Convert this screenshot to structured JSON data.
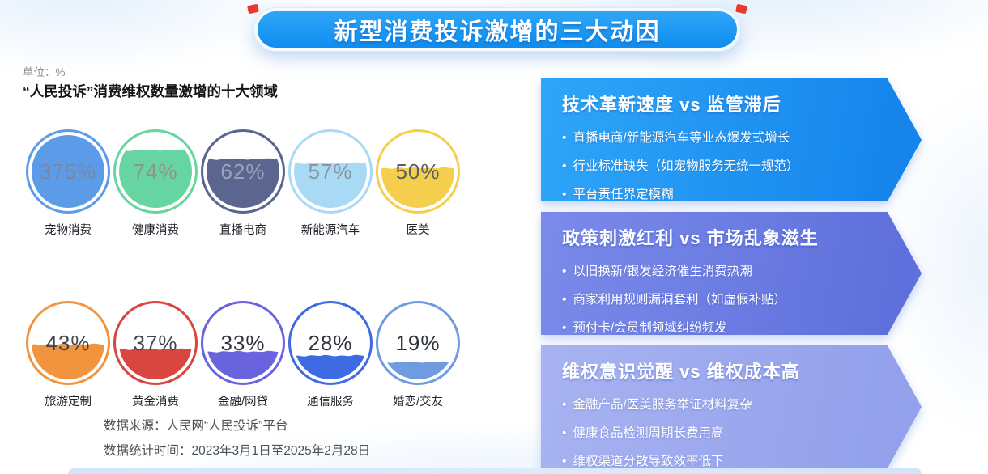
{
  "header": {
    "title": "新型消费投诉激增的三大动因",
    "banner_color": "#1E96F2",
    "accent_red": "#E8392E"
  },
  "left": {
    "unit_label": "单位：%",
    "section_title": "“人民投诉”消费维权数量激增的十大领域",
    "source_line1": "数据来源：人民网“人民投诉”平台",
    "source_line2": "数据统计时间：2023年3月1日至2025年2月28日"
  },
  "chart_data": {
    "type": "liquid-gauge-circles",
    "title": "“人民投诉”消费维权数量激增的十大领域",
    "unit": "%",
    "categories": [
      "宠物消费",
      "健康消费",
      "直播电商",
      "新能源汽车",
      "医美",
      "旅游定制",
      "黄金消费",
      "金融/网贷",
      "通信服务",
      "婚恋/交友"
    ],
    "values": [
      375,
      74,
      62,
      57,
      50,
      43,
      37,
      33,
      28,
      19
    ],
    "items": [
      {
        "label": "宠物消费",
        "value": 375,
        "display": "375%",
        "color": "#5B9BE8",
        "fill_pct": 100,
        "num_color": "#7B87A0"
      },
      {
        "label": "健康消费",
        "value": 74,
        "display": "74%",
        "color": "#67D5A1",
        "fill_pct": 74,
        "num_color": "#8A9590"
      },
      {
        "label": "直播电商",
        "value": 62,
        "display": "62%",
        "color": "#5A6590",
        "fill_pct": 62,
        "num_color": "#9BA3B8"
      },
      {
        "label": "新能源汽车",
        "value": 57,
        "display": "57%",
        "color": "#A9DAF5",
        "fill_pct": 57,
        "num_color": "#8A949E"
      },
      {
        "label": "医美",
        "value": 50,
        "display": "50%",
        "color": "#F6CE4D",
        "fill_pct": 50,
        "num_color": "#595F66"
      },
      {
        "label": "旅游定制",
        "value": 43,
        "display": "43%",
        "color": "#F2943D",
        "fill_pct": 43,
        "num_color": "#41464E"
      },
      {
        "label": "黄金消费",
        "value": 37,
        "display": "37%",
        "color": "#D9453F",
        "fill_pct": 37,
        "num_color": "#41464E"
      },
      {
        "label": "金融/网贷",
        "value": 33,
        "display": "33%",
        "color": "#6A63DE",
        "fill_pct": 33,
        "num_color": "#32363E"
      },
      {
        "label": "通信服务",
        "value": 28,
        "display": "28%",
        "color": "#3E6BE2",
        "fill_pct": 28,
        "num_color": "#2E3339"
      },
      {
        "label": "婚恋/交友",
        "value": 19,
        "display": "19%",
        "color": "#6F9CE0",
        "fill_pct": 19,
        "num_color": "#2E3339"
      }
    ]
  },
  "drivers": [
    {
      "heading": "技术革新速度 vs 监管滞后",
      "color_from": "#2FA6F8",
      "color_to": "#1585EC",
      "bullets": [
        "直播电商/新能源汽车等业态爆发式增长",
        "行业标准缺失（如宠物服务无统一规范）",
        "平台责任界定模糊"
      ]
    },
    {
      "heading": "政策刺激红利 vs 市场乱象滋生",
      "color_from": "#7B8BEA",
      "color_to": "#5F70DC",
      "bullets": [
        "以旧换新/银发经济催生消费热潮",
        "商家利用规则漏洞套利（如虚假补贴）",
        "预付卡/会员制领域纠纷频发"
      ]
    },
    {
      "heading": "维权意识觉醒 vs 维权成本高",
      "color_from": "#A8B3F1",
      "color_to": "#93A0EB",
      "bullets": [
        "金融产品/医美服务举证材料复杂",
        "健康食品检测周期长费用高",
        "维权渠道分散导致效率低下"
      ]
    }
  ]
}
